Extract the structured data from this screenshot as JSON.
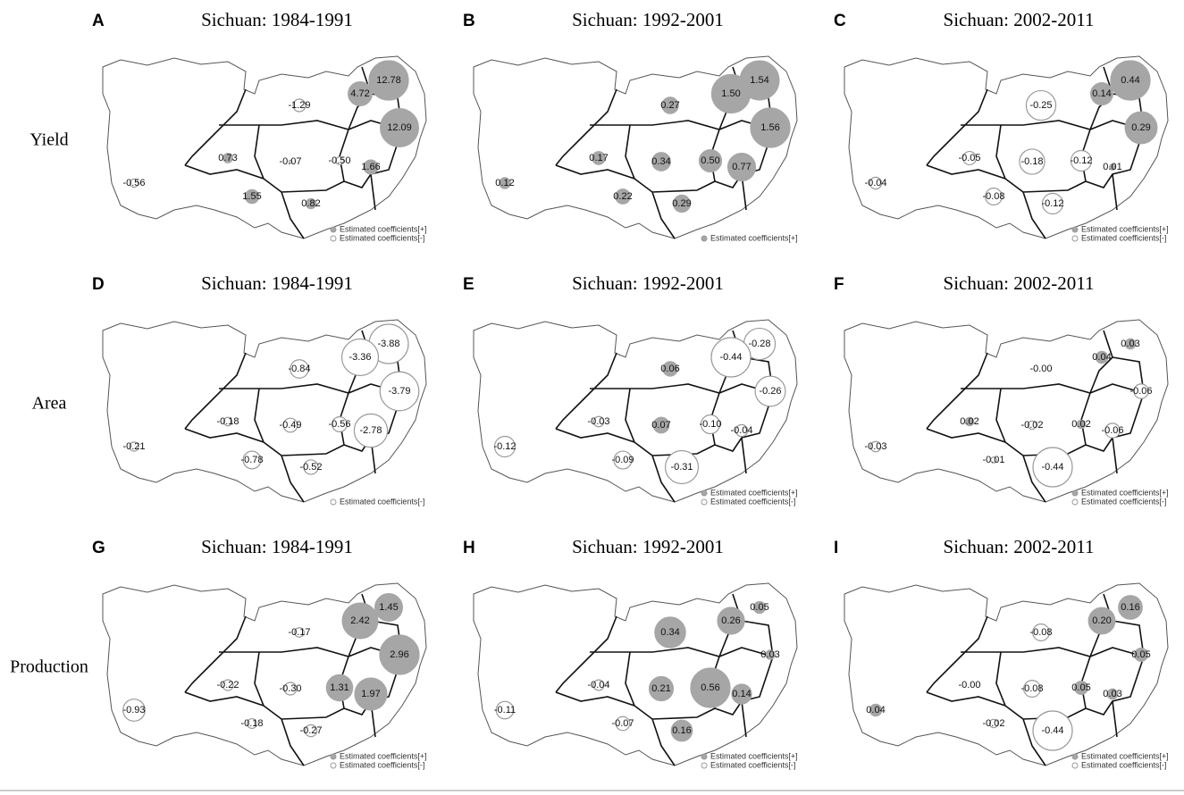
{
  "row_labels": [
    "Yield",
    "Area",
    "Production"
  ],
  "panels": [
    {
      "letter": "A",
      "title": "Sichuan: 1984-1991",
      "values": [
        12.78,
        4.72,
        -1.29,
        12.09,
        0.73,
        -0.07,
        -0.5,
        1.66,
        -0.56,
        1.55,
        0.82
      ],
      "value_labels": [
        "12.78",
        "4.72",
        "-1.29",
        "12.09",
        "0.73",
        "-0.07",
        "-0.50",
        "1.66",
        "-0.56",
        "1.55",
        "0.82"
      ],
      "legend": [
        {
          "label": "Estimated coefficients[+]",
          "filled": true
        },
        {
          "label": "Estimated coefficients[-]",
          "filled": false
        }
      ]
    },
    {
      "letter": "B",
      "title": "Sichuan: 1992-2001",
      "values": [
        1.54,
        1.5,
        0.27,
        1.56,
        0.17,
        0.34,
        0.5,
        0.77,
        0.12,
        0.22,
        0.29
      ],
      "value_labels": [
        "1.54",
        "1.50",
        "0.27",
        "1.56",
        "0.17",
        "0.34",
        "0.50",
        "0.77",
        "0.12",
        "0.22",
        "0.29"
      ],
      "legend": [
        {
          "label": "Estimated coefficients[+]",
          "filled": true
        }
      ]
    },
    {
      "letter": "C",
      "title": "Sichuan: 2002-2011",
      "values": [
        0.44,
        0.14,
        -0.25,
        0.29,
        -0.05,
        -0.18,
        -0.12,
        0.01,
        -0.04,
        -0.08,
        -0.12
      ],
      "value_labels": [
        "0.44",
        "0.14",
        "-0.25",
        "0.29",
        "-0.05",
        "-0.18",
        "-0.12",
        "0.01",
        "-0.04",
        "-0.08",
        "-0.12"
      ],
      "legend": [
        {
          "label": "Estimated coefficients[+]",
          "filled": true
        },
        {
          "label": "Estimated coefficients[-]",
          "filled": false
        }
      ]
    },
    {
      "letter": "D",
      "title": "Sichuan: 1984-1991",
      "values": [
        -3.88,
        -3.36,
        -0.84,
        -3.79,
        -0.18,
        -0.49,
        -0.56,
        -2.78,
        -0.21,
        -0.78,
        -0.52
      ],
      "value_labels": [
        "-3.88",
        "-3.36",
        "-0.84",
        "-3.79",
        "-0.18",
        "-0.49",
        "-0.56",
        "-2.78",
        "-0.21",
        "-0.78",
        "-0.52"
      ],
      "legend": [
        {
          "label": "Estimated coefficients[-]",
          "filled": false
        }
      ]
    },
    {
      "letter": "E",
      "title": "Sichuan: 1992-2001",
      "values": [
        -0.28,
        -0.44,
        0.06,
        -0.26,
        -0.03,
        0.07,
        -0.1,
        -0.04,
        -0.12,
        -0.09,
        -0.31
      ],
      "value_labels": [
        "-0.28",
        "-0.44",
        "0.06",
        "-0.26",
        "-0.03",
        "0.07",
        "-0.10",
        "-0.04",
        "-0.12",
        "-0.09",
        "-0.31"
      ],
      "legend": [
        {
          "label": "Estimated coefficients[+]",
          "filled": true
        },
        {
          "label": "Estimated coefficients[-]",
          "filled": false
        }
      ]
    },
    {
      "letter": "F",
      "title": "Sichuan: 2002-2011",
      "values": [
        0.03,
        0.04,
        0,
        -0.06,
        0.02,
        -0.02,
        0.02,
        -0.06,
        -0.03,
        -0.01,
        -0.44
      ],
      "value_labels": [
        "0.03",
        "0.04",
        "-0.00",
        "-0.06",
        "0.02",
        "-0.02",
        "0.02",
        "-0.06",
        "-0.03",
        "-0.01",
        "-0.44"
      ],
      "legend": [
        {
          "label": "Estimated coefficients[+]",
          "filled": true
        },
        {
          "label": "Estimated coefficients[-]",
          "filled": false
        }
      ]
    },
    {
      "letter": "G",
      "title": "Sichuan: 1984-1991",
      "values": [
        1.45,
        2.42,
        -0.17,
        2.96,
        -0.22,
        -0.3,
        1.31,
        1.97,
        -0.93,
        -0.18,
        -0.27
      ],
      "value_labels": [
        "1.45",
        "2.42",
        "-0.17",
        "2.96",
        "-0.22",
        "-0.30",
        "1.31",
        "1.97",
        "-0.93",
        "-0.18",
        "-0.27"
      ],
      "legend": [
        {
          "label": "Estimated coefficients[+]",
          "filled": true
        },
        {
          "label": "Estimated coefficients[-]",
          "filled": false
        }
      ]
    },
    {
      "letter": "H",
      "title": "Sichuan: 1992-2001",
      "values": [
        0.05,
        0.26,
        0.34,
        0.03,
        -0.04,
        0.21,
        0.56,
        0.14,
        -0.11,
        -0.07,
        0.16
      ],
      "value_labels": [
        "0.05",
        "0.26",
        "0.34",
        "0.03",
        "-0.04",
        "0.21",
        "0.56",
        "0.14",
        "-0.11",
        "-0.07",
        "0.16"
      ],
      "legend": [
        {
          "label": "Estimated coefficients[+]",
          "filled": true
        },
        {
          "label": "Estimated coefficients[-]",
          "filled": false
        }
      ]
    },
    {
      "letter": "I",
      "title": "Sichuan: 2002-2011",
      "values": [
        0.16,
        0.2,
        -0.08,
        0.05,
        0,
        -0.08,
        0.05,
        0.03,
        0.04,
        -0.02,
        -0.44
      ],
      "value_labels": [
        "0.16",
        "0.20",
        "-0.08",
        "0.05",
        "-0.00",
        "-0.08",
        "0.05",
        "0.03",
        "0.04",
        "-0.02",
        "-0.44"
      ],
      "legend": [
        {
          "label": "Estimated coefficients[+]",
          "filled": true
        },
        {
          "label": "Estimated coefficients[-]",
          "filled": false
        }
      ]
    }
  ]
}
